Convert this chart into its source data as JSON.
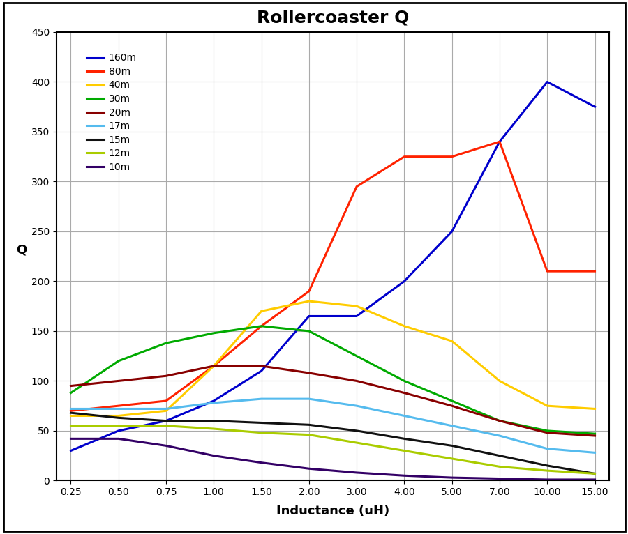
{
  "title": "Rollercoaster Q",
  "xlabel": "Inductance (uH)",
  "ylabel": "Q",
  "x_ticks": [
    0.25,
    0.5,
    0.75,
    1.0,
    1.5,
    2.0,
    3.0,
    4.0,
    5.0,
    7.0,
    10.0,
    15.0
  ],
  "xtick_labels": [
    "0.25",
    "0.50",
    "0.75",
    "1.00",
    "1.50",
    "2.00",
    "3.00",
    "4.00",
    "5.00",
    "7.00",
    "10.00",
    "15.00"
  ],
  "series": [
    {
      "label": "160m",
      "color": "#0000CC",
      "y": [
        30,
        50,
        60,
        80,
        110,
        165,
        165,
        200,
        250,
        340,
        400,
        375
      ]
    },
    {
      "label": "80m",
      "color": "#FF2200",
      "y": [
        70,
        75,
        80,
        115,
        155,
        190,
        295,
        325,
        325,
        340,
        210,
        210
      ]
    },
    {
      "label": "40m",
      "color": "#FFCC00",
      "y": [
        65,
        65,
        70,
        115,
        170,
        180,
        175,
        155,
        140,
        100,
        75,
        72
      ]
    },
    {
      "label": "30m",
      "color": "#00AA00",
      "y": [
        88,
        120,
        138,
        148,
        155,
        150,
        125,
        100,
        80,
        60,
        50,
        47
      ]
    },
    {
      "label": "20m",
      "color": "#880000",
      "y": [
        95,
        100,
        105,
        115,
        115,
        108,
        100,
        88,
        75,
        60,
        48,
        45
      ]
    },
    {
      "label": "17m",
      "color": "#55BBEE",
      "y": [
        72,
        72,
        72,
        78,
        82,
        82,
        75,
        65,
        55,
        45,
        32,
        28
      ]
    },
    {
      "label": "15m",
      "color": "#111111",
      "y": [
        68,
        63,
        60,
        60,
        58,
        56,
        50,
        42,
        35,
        25,
        15,
        7
      ]
    },
    {
      "label": "12m",
      "color": "#AACC00",
      "y": [
        55,
        55,
        55,
        52,
        48,
        46,
        38,
        30,
        22,
        14,
        10,
        7
      ]
    },
    {
      "label": "10m",
      "color": "#330066",
      "y": [
        42,
        42,
        35,
        25,
        18,
        12,
        8,
        5,
        3,
        2,
        1,
        1
      ]
    }
  ],
  "ylim": [
    0,
    450
  ],
  "yticks": [
    0,
    50,
    100,
    150,
    200,
    250,
    300,
    350,
    400,
    450
  ],
  "figsize": [
    9.0,
    7.66
  ],
  "dpi": 100,
  "grid_color": "#AAAAAA",
  "bg_color": "#FFFFFF",
  "border_color": "#000000"
}
